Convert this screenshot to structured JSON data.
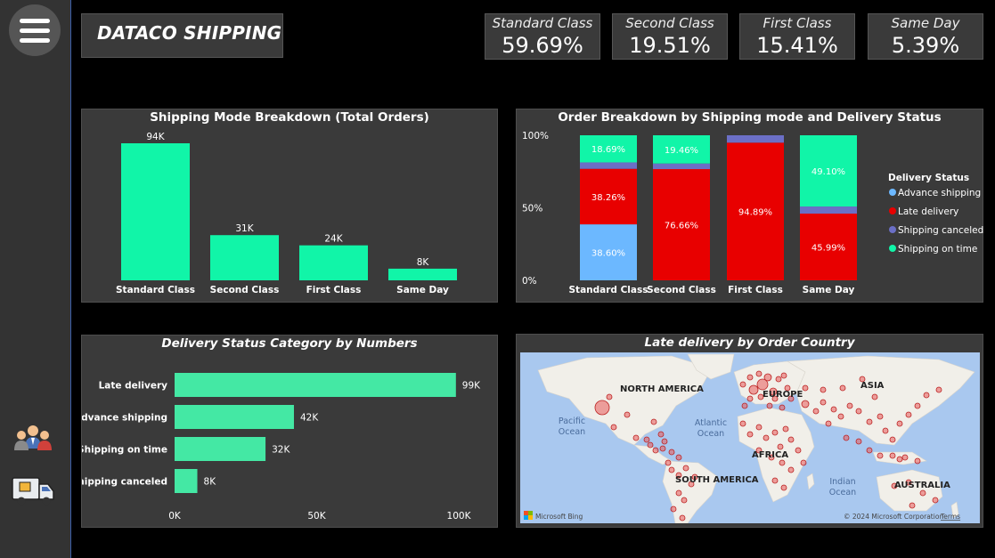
{
  "header": {
    "title": "DATACO SHIPPING"
  },
  "kpis": [
    {
      "label": "Standard Class",
      "value": "59.69%"
    },
    {
      "label": "Second Class",
      "value": "19.51%"
    },
    {
      "label": "First Class",
      "value": "15.41%"
    },
    {
      "label": "Same Day",
      "value": "5.39%"
    }
  ],
  "sidebar": {
    "icons": [
      "menu-icon",
      "customers-icon",
      "delivery-truck-icon"
    ]
  },
  "colors": {
    "accent_teal": "#11f5a8",
    "late": "#e80000",
    "advance": "#6cb8ff",
    "canceled": "#6b6fc6",
    "ontime": "#11f5a8",
    "hbar": "#44e8a4",
    "panel": "#3a3a3a"
  },
  "chart_data": [
    {
      "type": "bar",
      "title": "Shipping Mode Breakdown (Total Orders)",
      "categories": [
        "Standard Class",
        "Second Class",
        "First Class",
        "Same Day"
      ],
      "values": [
        94000,
        31000,
        24000,
        8000
      ],
      "value_labels": [
        "94K",
        "31K",
        "24K",
        "8K"
      ],
      "ylim": [
        0,
        94000
      ]
    },
    {
      "type": "bar",
      "stacked": "100%",
      "title": "Order Breakdown by Shipping mode and Delivery Status",
      "categories": [
        "Standard Class",
        "Second Class",
        "First Class",
        "Same Day"
      ],
      "yticks": [
        "100%",
        "50%",
        "0%"
      ],
      "legend_title": "Delivery Status",
      "legend_position": "right",
      "series": [
        {
          "name": "Advance shipping",
          "values": [
            38.6,
            0,
            0,
            0
          ],
          "labels": [
            "38.60%",
            "",
            "",
            ""
          ]
        },
        {
          "name": "Late delivery",
          "values": [
            38.26,
            76.66,
            94.89,
            45.99
          ],
          "labels": [
            "38.26%",
            "76.66%",
            "94.89%",
            "45.99%"
          ]
        },
        {
          "name": "Shipping canceled",
          "values": [
            4.45,
            3.88,
            5.11,
            4.91
          ],
          "labels": [
            "",
            "",
            "",
            ""
          ]
        },
        {
          "name": "Shipping on time",
          "values": [
            18.69,
            19.46,
            0,
            49.1
          ],
          "labels": [
            "18.69%",
            "19.46%",
            "",
            "49.10%"
          ]
        }
      ]
    },
    {
      "type": "bar",
      "orientation": "horizontal",
      "title": "Delivery Status Category by Numbers",
      "categories": [
        "Late delivery",
        "Advance shipping",
        "Shipping on time",
        "Shipping canceled"
      ],
      "values": [
        99000,
        42000,
        32000,
        8000
      ],
      "value_labels": [
        "99K",
        "42K",
        "32K",
        "8K"
      ],
      "xticks": [
        "0K",
        "50K",
        "100K"
      ],
      "xlim": [
        0,
        100000
      ]
    }
  ],
  "map": {
    "title": "Late delivery by Order Country",
    "labels": {
      "north_america": "NORTH AMERICA",
      "south_america": "SOUTH AMERICA",
      "europe": "EUROPE",
      "africa": "AFRICA",
      "asia": "ASIA",
      "australia": "AUSTRALIA",
      "pacific": "Pacific Ocean",
      "atlantic": "Atlantic Ocean",
      "indian": "Indian Ocean"
    },
    "attribution": "Microsoft Bing",
    "copyright": "© 2024 Microsoft Corporation",
    "terms": "Terms"
  }
}
